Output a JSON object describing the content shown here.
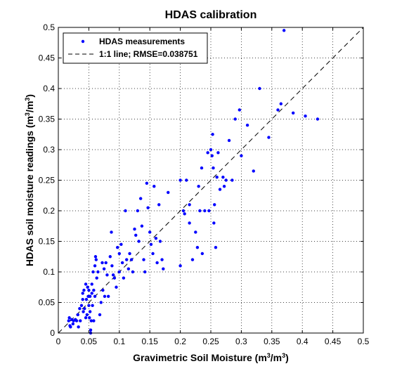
{
  "chart_data": {
    "type": "scatter",
    "title": "HDAS calibration",
    "xlabel": {
      "main": "Gravimetric Soil Moisture (m",
      "sup1": "3",
      "mid": "/m",
      "sup2": "3",
      "end": ")"
    },
    "ylabel": {
      "main": "HDAS soil moisture readings (m",
      "sup1": "3",
      "mid": "/m",
      "sup2": "3",
      "end": ")"
    },
    "xlim": [
      0,
      0.5
    ],
    "ylim": [
      0,
      0.5
    ],
    "x_ticks": [
      0,
      0.05,
      0.1,
      0.15,
      0.2,
      0.25,
      0.3,
      0.35,
      0.4,
      0.45,
      0.5
    ],
    "y_ticks": [
      0,
      0.05,
      0.1,
      0.15,
      0.2,
      0.25,
      0.3,
      0.35,
      0.4,
      0.45,
      0.5
    ],
    "x_tick_labels": [
      "0",
      "0.05",
      "0.1",
      "0.15",
      "0.2",
      "0.25",
      "0.3",
      "0.35",
      "0.4",
      "0.45",
      "0.5"
    ],
    "y_tick_labels": [
      "0",
      "0.05",
      "0.1",
      "0.15",
      "0.2",
      "0.25",
      "0.3",
      "0.35",
      "0.4",
      "0.45",
      "0.5"
    ],
    "grid": true,
    "legend": {
      "placement": "top-left",
      "entries": [
        "HDAS measurements",
        "1:1 line; RMSE=0.038751"
      ]
    },
    "colors": {
      "points": "#0000ff",
      "line": "#000000",
      "grid": "#000000"
    },
    "series": [
      {
        "name": "HDAS measurements",
        "style": "points",
        "points": [
          [
            0.017,
            0.02
          ],
          [
            0.018,
            0.025
          ],
          [
            0.019,
            0.012
          ],
          [
            0.02,
            0.01
          ],
          [
            0.022,
            0.022
          ],
          [
            0.024,
            0.015
          ],
          [
            0.025,
            0.02
          ],
          [
            0.028,
            0.022
          ],
          [
            0.03,
            0.02
          ],
          [
            0.032,
            0.03
          ],
          [
            0.033,
            0.01
          ],
          [
            0.035,
            0.04
          ],
          [
            0.036,
            0.02
          ],
          [
            0.038,
            0.045
          ],
          [
            0.04,
            0.065
          ],
          [
            0.04,
            0.055
          ],
          [
            0.041,
            0.035
          ],
          [
            0.042,
            0.07
          ],
          [
            0.043,
            0.04
          ],
          [
            0.045,
            0.08
          ],
          [
            0.045,
            0.025
          ],
          [
            0.046,
            0.055
          ],
          [
            0.047,
            0.03
          ],
          [
            0.048,
            0.075
          ],
          [
            0.049,
            0.06
          ],
          [
            0.05,
            0.07
          ],
          [
            0.05,
            0.045
          ],
          [
            0.051,
            0.025
          ],
          [
            0.052,
            0.035
          ],
          [
            0.052,
            0.06
          ],
          [
            0.053,
            0.005
          ],
          [
            0.053,
            0.0
          ],
          [
            0.054,
            0.02
          ],
          [
            0.055,
            0.08
          ],
          [
            0.055,
            0.065
          ],
          [
            0.056,
            0.045
          ],
          [
            0.057,
            0.1
          ],
          [
            0.058,
            0.02
          ],
          [
            0.058,
            0.07
          ],
          [
            0.06,
            0.06
          ],
          [
            0.06,
            0.11
          ],
          [
            0.061,
            0.125
          ],
          [
            0.062,
            0.12
          ],
          [
            0.063,
            0.09
          ],
          [
            0.065,
            0.1
          ],
          [
            0.068,
            0.03
          ],
          [
            0.07,
            0.05
          ],
          [
            0.072,
            0.115
          ],
          [
            0.073,
            0.07
          ],
          [
            0.075,
            0.105
          ],
          [
            0.076,
            0.06
          ],
          [
            0.078,
            0.115
          ],
          [
            0.08,
            0.095
          ],
          [
            0.082,
            0.06
          ],
          [
            0.085,
            0.125
          ],
          [
            0.087,
            0.165
          ],
          [
            0.088,
            0.11
          ],
          [
            0.09,
            0.095
          ],
          [
            0.092,
            0.09
          ],
          [
            0.095,
            0.075
          ],
          [
            0.097,
            0.14
          ],
          [
            0.1,
            0.1
          ],
          [
            0.1,
            0.13
          ],
          [
            0.103,
            0.145
          ],
          [
            0.105,
            0.115
          ],
          [
            0.107,
            0.09
          ],
          [
            0.11,
            0.2
          ],
          [
            0.112,
            0.12
          ],
          [
            0.115,
            0.105
          ],
          [
            0.117,
            0.13
          ],
          [
            0.12,
            0.12
          ],
          [
            0.122,
            0.1
          ],
          [
            0.125,
            0.17
          ],
          [
            0.127,
            0.16
          ],
          [
            0.13,
            0.2
          ],
          [
            0.132,
            0.15
          ],
          [
            0.135,
            0.22
          ],
          [
            0.137,
            0.175
          ],
          [
            0.14,
            0.12
          ],
          [
            0.142,
            0.1
          ],
          [
            0.145,
            0.245
          ],
          [
            0.147,
            0.205
          ],
          [
            0.15,
            0.165
          ],
          [
            0.152,
            0.145
          ],
          [
            0.155,
            0.13
          ],
          [
            0.157,
            0.24
          ],
          [
            0.16,
            0.155
          ],
          [
            0.162,
            0.115
          ],
          [
            0.165,
            0.21
          ],
          [
            0.167,
            0.15
          ],
          [
            0.17,
            0.12
          ],
          [
            0.172,
            0.105
          ],
          [
            0.18,
            0.23
          ],
          [
            0.2,
            0.25
          ],
          [
            0.2,
            0.11
          ],
          [
            0.205,
            0.2
          ],
          [
            0.207,
            0.195
          ],
          [
            0.21,
            0.25
          ],
          [
            0.215,
            0.21
          ],
          [
            0.215,
            0.18
          ],
          [
            0.22,
            0.12
          ],
          [
            0.225,
            0.165
          ],
          [
            0.228,
            0.14
          ],
          [
            0.23,
            0.24
          ],
          [
            0.232,
            0.2
          ],
          [
            0.235,
            0.27
          ],
          [
            0.236,
            0.13
          ],
          [
            0.24,
            0.2
          ],
          [
            0.245,
            0.295
          ],
          [
            0.247,
            0.2
          ],
          [
            0.25,
            0.3
          ],
          [
            0.252,
            0.29
          ],
          [
            0.253,
            0.325
          ],
          [
            0.254,
            0.27
          ],
          [
            0.255,
            0.18
          ],
          [
            0.256,
            0.21
          ],
          [
            0.258,
            0.14
          ],
          [
            0.26,
            0.255
          ],
          [
            0.262,
            0.295
          ],
          [
            0.265,
            0.235
          ],
          [
            0.27,
            0.255
          ],
          [
            0.272,
            0.24
          ],
          [
            0.275,
            0.25
          ],
          [
            0.28,
            0.315
          ],
          [
            0.285,
            0.25
          ],
          [
            0.29,
            0.35
          ],
          [
            0.297,
            0.365
          ],
          [
            0.3,
            0.29
          ],
          [
            0.31,
            0.34
          ],
          [
            0.32,
            0.265
          ],
          [
            0.33,
            0.4
          ],
          [
            0.345,
            0.32
          ],
          [
            0.36,
            0.365
          ],
          [
            0.365,
            0.375
          ],
          [
            0.37,
            0.495
          ],
          [
            0.385,
            0.36
          ],
          [
            0.405,
            0.355
          ],
          [
            0.425,
            0.35
          ]
        ]
      },
      {
        "name": "1:1 line; RMSE=0.038751",
        "style": "dashed-line",
        "points": [
          [
            0,
            0
          ],
          [
            0.5,
            0.5
          ]
        ]
      }
    ]
  }
}
